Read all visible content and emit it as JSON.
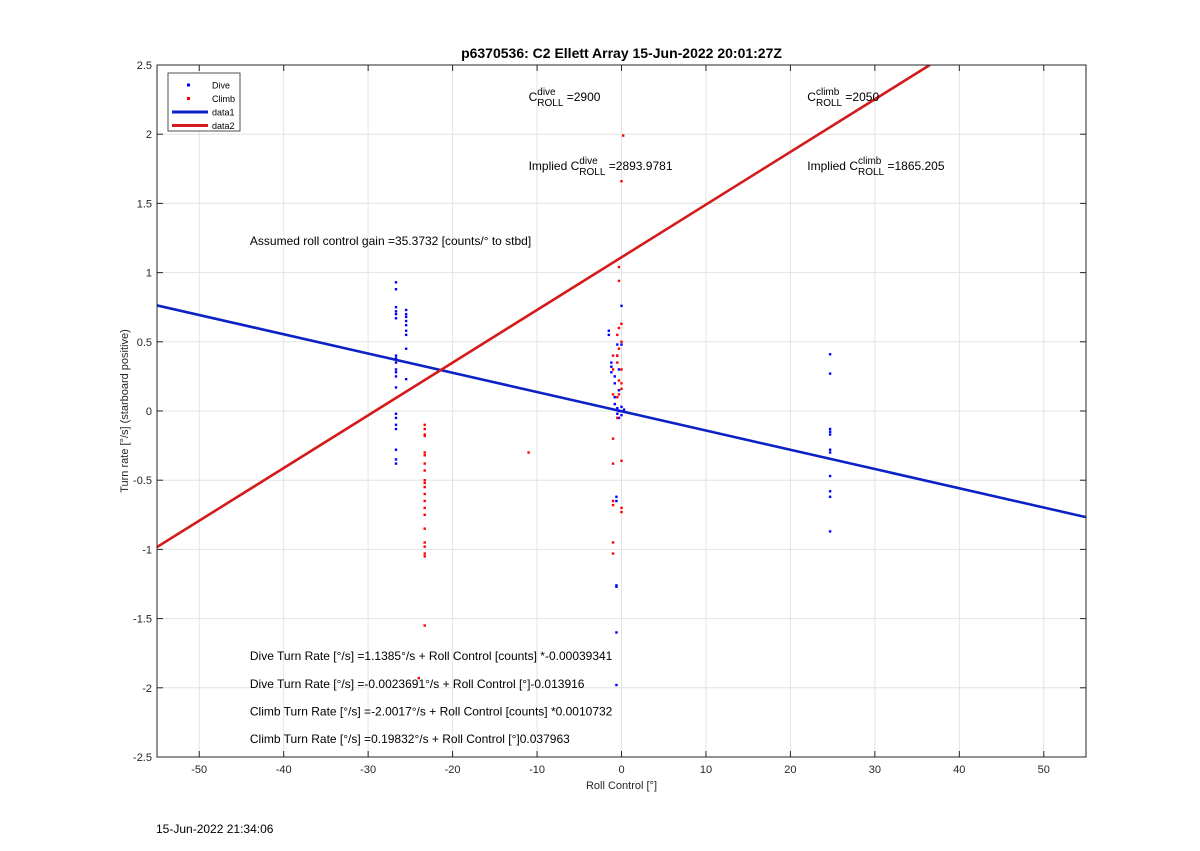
{
  "chart_data": {
    "type": "scatter",
    "title": "p6370536: C2 Ellett Array 15-Jun-2022 20:01:27Z",
    "xlabel": "Roll Control [°]",
    "ylabel": "Turn rate [°/s] (starboard positive)",
    "xlim": [
      -55,
      55
    ],
    "ylim": [
      -2.5,
      2.5
    ],
    "xticks": [
      -50,
      -40,
      -30,
      -20,
      -10,
      0,
      10,
      20,
      30,
      40,
      50
    ],
    "yticks": [
      -2.5,
      -2,
      -1.5,
      -1,
      -0.5,
      0,
      0.5,
      1,
      1.5,
      2,
      2.5
    ],
    "grid": true,
    "legend_position": "top-left",
    "legend": [
      {
        "label": "Dive",
        "kind": "marker",
        "color": "#0000ff"
      },
      {
        "label": "Climb",
        "kind": "marker",
        "color": "#ff0000"
      },
      {
        "label": "data1",
        "kind": "line",
        "color": "#0b22c4"
      },
      {
        "label": "data2",
        "kind": "line",
        "color": "#d41a1a"
      }
    ],
    "series": [
      {
        "name": "Dive",
        "kind": "scatter",
        "color": "#0000ff",
        "points": [
          [
            -26.7,
            0.93
          ],
          [
            -26.7,
            0.88
          ],
          [
            -26.7,
            0.75
          ],
          [
            -26.7,
            0.72
          ],
          [
            -26.7,
            0.7
          ],
          [
            -26.7,
            0.67
          ],
          [
            -26.7,
            0.4
          ],
          [
            -26.7,
            0.38
          ],
          [
            -26.7,
            0.35
          ],
          [
            -26.7,
            0.3
          ],
          [
            -26.7,
            0.28
          ],
          [
            -26.7,
            0.25
          ],
          [
            -26.7,
            0.17
          ],
          [
            -26.7,
            -0.02
          ],
          [
            -26.7,
            -0.05
          ],
          [
            -26.7,
            -0.1
          ],
          [
            -26.7,
            -0.13
          ],
          [
            -26.7,
            -0.28
          ],
          [
            -26.7,
            -0.35
          ],
          [
            -26.7,
            -0.38
          ],
          [
            -25.5,
            0.73
          ],
          [
            -25.5,
            0.7
          ],
          [
            -25.5,
            0.68
          ],
          [
            -25.5,
            0.65
          ],
          [
            -25.5,
            0.62
          ],
          [
            -25.5,
            0.58
          ],
          [
            -25.5,
            0.55
          ],
          [
            -25.5,
            0.45
          ],
          [
            -25.5,
            0.23
          ],
          [
            -1.5,
            0.58
          ],
          [
            -1.5,
            0.55
          ],
          [
            -1.2,
            0.35
          ],
          [
            -1.2,
            0.32
          ],
          [
            -1.2,
            0.28
          ],
          [
            -0.8,
            0.25
          ],
          [
            -0.8,
            0.2
          ],
          [
            -0.8,
            0.1
          ],
          [
            -0.8,
            0.05
          ],
          [
            -0.5,
            0.48
          ],
          [
            -0.5,
            0.4
          ],
          [
            -0.5,
            0.02
          ],
          [
            -0.5,
            -0.02
          ],
          [
            -0.3,
            0.3
          ],
          [
            -0.3,
            0.15
          ],
          [
            -0.3,
            0.0
          ],
          [
            -0.3,
            -0.05
          ],
          [
            0.0,
            0.76
          ],
          [
            0.0,
            0.48
          ],
          [
            0.0,
            0.03
          ],
          [
            0.0,
            -0.03
          ],
          [
            0.3,
            0.01
          ],
          [
            -0.6,
            -0.62
          ],
          [
            -0.6,
            -0.65
          ],
          [
            -0.6,
            -1.26
          ],
          [
            -0.6,
            -1.27
          ],
          [
            -0.6,
            -1.6
          ],
          [
            -0.6,
            -1.98
          ],
          [
            24.7,
            0.41
          ],
          [
            24.7,
            0.27
          ],
          [
            24.7,
            -0.13
          ],
          [
            24.7,
            -0.15
          ],
          [
            24.7,
            -0.17
          ],
          [
            24.7,
            -0.28
          ],
          [
            24.7,
            -0.3
          ],
          [
            24.7,
            -0.47
          ],
          [
            24.7,
            -0.58
          ],
          [
            24.7,
            -0.62
          ],
          [
            24.7,
            -0.87
          ]
        ]
      },
      {
        "name": "Climb",
        "kind": "scatter",
        "color": "#ff0000",
        "points": [
          [
            -23.3,
            -0.1
          ],
          [
            -23.3,
            -0.13
          ],
          [
            -23.3,
            -0.17
          ],
          [
            -23.3,
            -0.18
          ],
          [
            -23.3,
            -0.3
          ],
          [
            -23.3,
            -0.32
          ],
          [
            -23.3,
            -0.38
          ],
          [
            -23.3,
            -0.43
          ],
          [
            -23.3,
            -0.5
          ],
          [
            -23.3,
            -0.52
          ],
          [
            -23.3,
            -0.55
          ],
          [
            -23.3,
            -0.6
          ],
          [
            -23.3,
            -0.65
          ],
          [
            -23.3,
            -0.7
          ],
          [
            -23.3,
            -0.75
          ],
          [
            -23.3,
            -0.85
          ],
          [
            -23.3,
            -0.95
          ],
          [
            -23.3,
            -0.98
          ],
          [
            -23.3,
            -1.03
          ],
          [
            -23.3,
            -1.05
          ],
          [
            -23.3,
            -1.55
          ],
          [
            -24.0,
            -1.93
          ],
          [
            -11.0,
            -0.3
          ],
          [
            -1.0,
            0.4
          ],
          [
            -1.0,
            0.3
          ],
          [
            -1.0,
            0.12
          ],
          [
            -1.0,
            -0.2
          ],
          [
            -1.0,
            -0.38
          ],
          [
            -1.0,
            -0.65
          ],
          [
            -1.0,
            -0.68
          ],
          [
            -1.0,
            -0.95
          ],
          [
            -1.0,
            -1.03
          ],
          [
            -0.5,
            0.55
          ],
          [
            -0.5,
            0.4
          ],
          [
            -0.5,
            0.35
          ],
          [
            -0.5,
            0.1
          ],
          [
            -0.5,
            -0.05
          ],
          [
            -0.3,
            1.04
          ],
          [
            -0.3,
            0.94
          ],
          [
            -0.3,
            0.6
          ],
          [
            -0.3,
            0.45
          ],
          [
            -0.3,
            0.22
          ],
          [
            -0.3,
            0.12
          ],
          [
            0.0,
            1.66
          ],
          [
            0.0,
            0.63
          ],
          [
            0.0,
            0.5
          ],
          [
            0.0,
            0.3
          ],
          [
            0.0,
            0.2
          ],
          [
            0.0,
            0.16
          ],
          [
            0.0,
            -0.36
          ],
          [
            0.0,
            -0.7
          ],
          [
            0.0,
            -0.73
          ],
          [
            0.2,
            1.99
          ]
        ]
      },
      {
        "name": "data1",
        "kind": "line",
        "color": "#0b22c4",
        "points": [
          [
            -55,
            0.763
          ],
          [
            55,
            -0.767
          ]
        ]
      },
      {
        "name": "data2",
        "kind": "line",
        "color": "#d41a1a",
        "points": [
          [
            -55,
            -0.983
          ],
          [
            36.5,
            2.5
          ]
        ]
      }
    ],
    "annotations": [
      {
        "id": "c-dive",
        "base": "C",
        "sup": "dive",
        "sub": "ROLL",
        "value": " =2900",
        "x": -11,
        "y": 2.24
      },
      {
        "id": "c-climb",
        "base": "C",
        "sup": "climb",
        "sub": "ROLL",
        "value": " =2050",
        "x": 22,
        "y": 2.24
      },
      {
        "id": "implied-dive",
        "prefix": "Implied ",
        "base": "C",
        "sup": "dive",
        "sub": "ROLL",
        "value": " =2893.9781",
        "x": -11,
        "y": 1.74
      },
      {
        "id": "implied-climb",
        "prefix": "Implied ",
        "base": "C",
        "sup": "climb",
        "sub": "ROLL",
        "value": " =1865.205",
        "x": 22,
        "y": 1.74
      },
      {
        "id": "roll-gain",
        "text": "Assumed roll control gain =35.3732 [counts/° to stbd]",
        "x": -44,
        "y": 1.2
      },
      {
        "id": "dive-counts",
        "text": "Dive Turn Rate [°/s] =1.1385°/s + Roll Control [counts] *-0.00039341",
        "x": -44,
        "y": -1.8
      },
      {
        "id": "dive-deg",
        "text": "Dive Turn Rate [°/s] =-0.0023691°/s + Roll Control [°]-0.013916",
        "x": -44,
        "y": -2.0
      },
      {
        "id": "climb-counts",
        "text": "Climb Turn Rate [°/s] =-2.0017°/s + Roll Control [counts] *0.0010732",
        "x": -44,
        "y": -2.2
      },
      {
        "id": "climb-deg",
        "text": "Climb Turn Rate [°/s] =0.19832°/s + Roll Control [°]0.037963",
        "x": -44,
        "y": -2.4
      }
    ]
  },
  "footer": {
    "timestamp": "15-Jun-2022 21:34:06"
  }
}
